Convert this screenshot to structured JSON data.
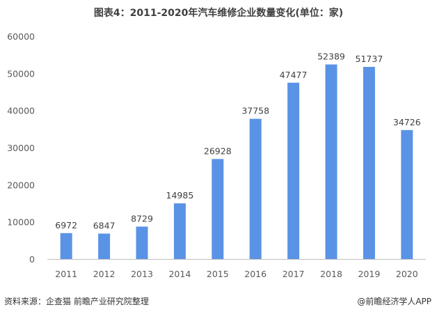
{
  "colors": {
    "bar": "#5A93E5",
    "axis": "#bfbfbf",
    "text": "#404040"
  },
  "footer": {
    "source": "资料来源：企查猫 前瞻产业研究院整理",
    "brand": "@前瞻经济学人APP"
  },
  "chart_data": {
    "type": "bar",
    "title": "图表4：2011-2020年汽车维修企业数量变化(单位：家)",
    "categories": [
      "2011",
      "2012",
      "2013",
      "2014",
      "2015",
      "2016",
      "2017",
      "2018",
      "2019",
      "2020"
    ],
    "values": [
      6972,
      6847,
      8729,
      14985,
      26928,
      37758,
      47477,
      52389,
      51737,
      34726
    ],
    "yticks": [
      "0",
      "10000",
      "20000",
      "30000",
      "40000",
      "50000",
      "60000"
    ],
    "ylim": [
      0,
      60000
    ],
    "grid": false,
    "xlabel": "",
    "ylabel": ""
  }
}
